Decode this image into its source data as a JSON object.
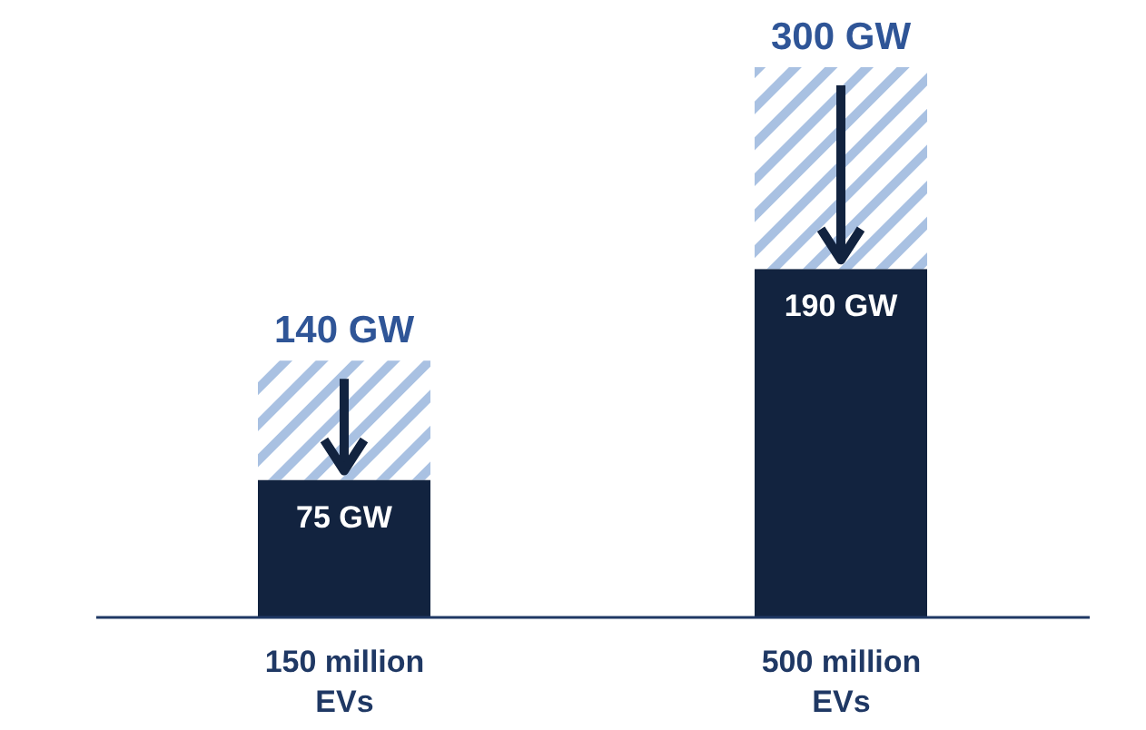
{
  "chart_data": {
    "type": "bar",
    "stacked": true,
    "categories": [
      "150 million EVs",
      "500 million EVs"
    ],
    "series": [
      {
        "color": "#12233f",
        "values": [
          75,
          190
        ],
        "value_labels": [
          "75 GW",
          "190 GW"
        ]
      },
      {
        "color": "#a9c1e2",
        "values": [
          65,
          110
        ]
      }
    ],
    "totals": [
      "140 GW",
      "300 GW"
    ],
    "grid": false,
    "legend": false
  }
}
